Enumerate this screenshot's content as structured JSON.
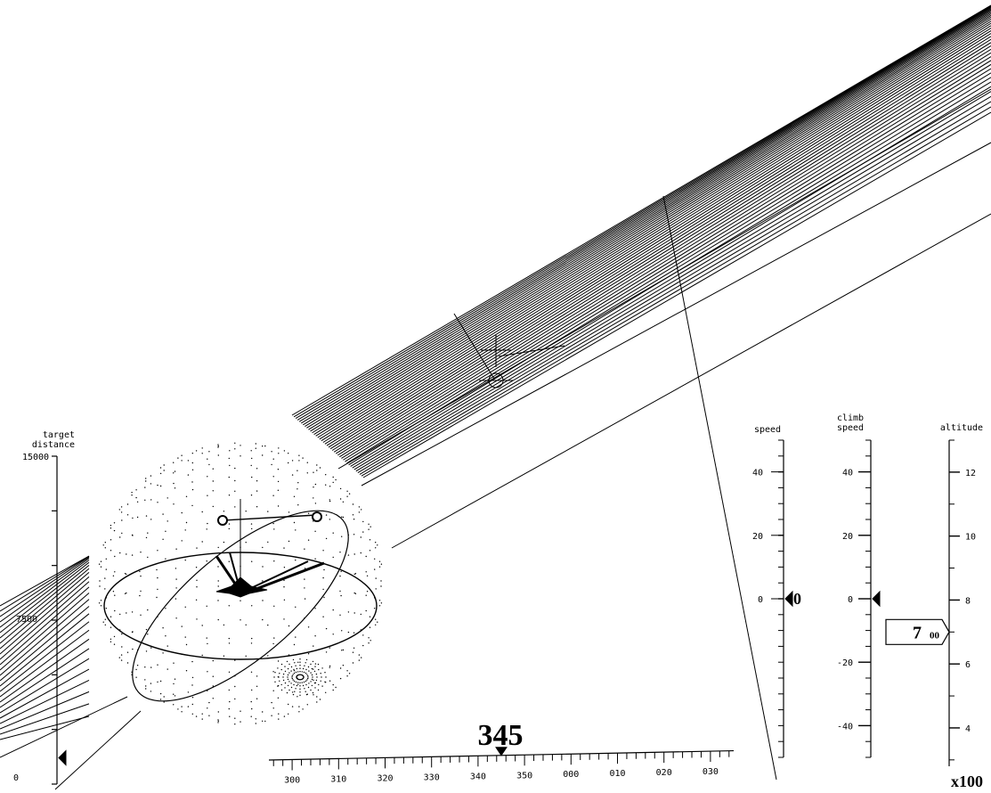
{
  "colors": {
    "ink": "#000000",
    "background": "#ffffff"
  },
  "target_distance": {
    "label_line1": "target",
    "label_line2": "distance",
    "max_label": "15000",
    "mid_label": "7500",
    "min_label": "0",
    "range": [
      0,
      15000
    ],
    "pointer_value": 1200
  },
  "speed": {
    "label": "speed",
    "tick_labels": [
      "40",
      "20",
      "0"
    ],
    "range": [
      -50,
      50
    ],
    "value": 0,
    "readout": "0"
  },
  "climb_speed": {
    "label_line1": "climb",
    "label_line2": "speed",
    "tick_labels": [
      "40",
      "20",
      "0",
      "-20",
      "-40"
    ],
    "range": [
      -50,
      50
    ],
    "value": 0
  },
  "altitude": {
    "label": "altitude",
    "tick_labels": [
      "12",
      "10",
      "8",
      "6",
      "4"
    ],
    "range": [
      2.8,
      13
    ],
    "value": 7.0,
    "readout_main": "7",
    "readout_small": "00",
    "multiplier": "x100"
  },
  "heading": {
    "readout": "345",
    "tick_labels": [
      "300",
      "310",
      "320",
      "330",
      "340",
      "350",
      "000",
      "010",
      "020",
      "030"
    ],
    "range": [
      295,
      395
    ],
    "value": 345
  },
  "icons": {
    "sphere": "attitude-sphere-icon",
    "aircraft": "aircraft-icon",
    "crosshair": "crosshair-icon"
  }
}
